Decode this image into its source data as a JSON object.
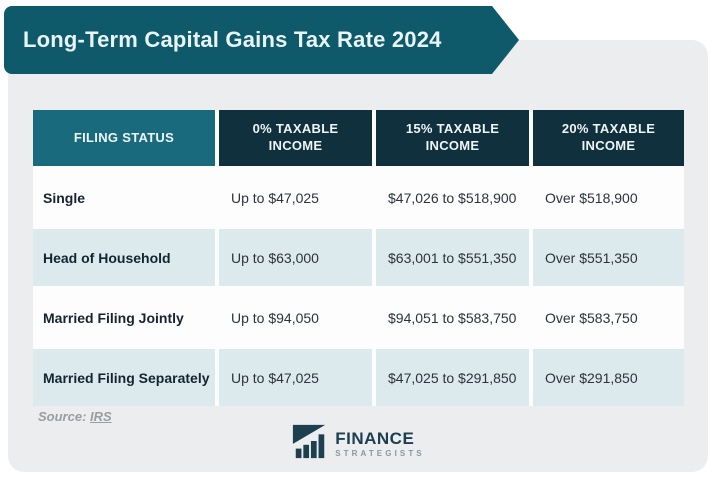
{
  "banner": {
    "title": "Long-Term Capital Gains Tax Rate 2024"
  },
  "table": {
    "columns": [
      "FILING STATUS",
      "0% TAXABLE INCOME",
      "15% TAXABLE INCOME",
      "20% TAXABLE INCOME"
    ],
    "rows": [
      [
        "Single",
        "Up to $47,025",
        "$47,026 to $518,900",
        "Over $518,900"
      ],
      [
        "Head of Household",
        "Up to $63,000",
        "$63,001 to $551,350",
        "Over $551,350"
      ],
      [
        "Married Filing Jointly",
        "Up to $94,050",
        "$94,051 to $583,750",
        "Over $583,750"
      ],
      [
        "Married Filing Separately",
        "Up to $47,025",
        "$47,025 to $291,850",
        "Over $291,850"
      ]
    ]
  },
  "source": {
    "label": "Source:",
    "link": "IRS"
  },
  "logo": {
    "line1": "FINANCE",
    "line2": "STRATEGISTS"
  },
  "colors": {
    "banner_teal": "#0e5a6b",
    "header_dark": "#11303d",
    "header_light_teal": "#1a6a7e",
    "row_white": "#fdfdfd",
    "row_alt_blue": "#dce9ed",
    "card_gray": "#ebedee",
    "logo_teal": "#1c4050"
  },
  "chart_data": {
    "type": "table",
    "title": "Long-Term Capital Gains Tax Rate 2024",
    "columns": [
      "FILING STATUS",
      "0% TAXABLE INCOME",
      "15% TAXABLE INCOME",
      "20% TAXABLE INCOME"
    ],
    "rows": [
      [
        "Single",
        "Up to $47,025",
        "$47,026 to $518,900",
        "Over $518,900"
      ],
      [
        "Head of Household",
        "Up to $63,000",
        "$63,001 to $551,350",
        "Over $551,350"
      ],
      [
        "Married Filing Jointly",
        "Up to $94,050",
        "$94,051 to $583,750",
        "Over $583,750"
      ],
      [
        "Married Filing Separately",
        "Up to $47,025",
        "$47,025 to $291,850",
        "Over $291,850"
      ]
    ],
    "source": "IRS"
  }
}
